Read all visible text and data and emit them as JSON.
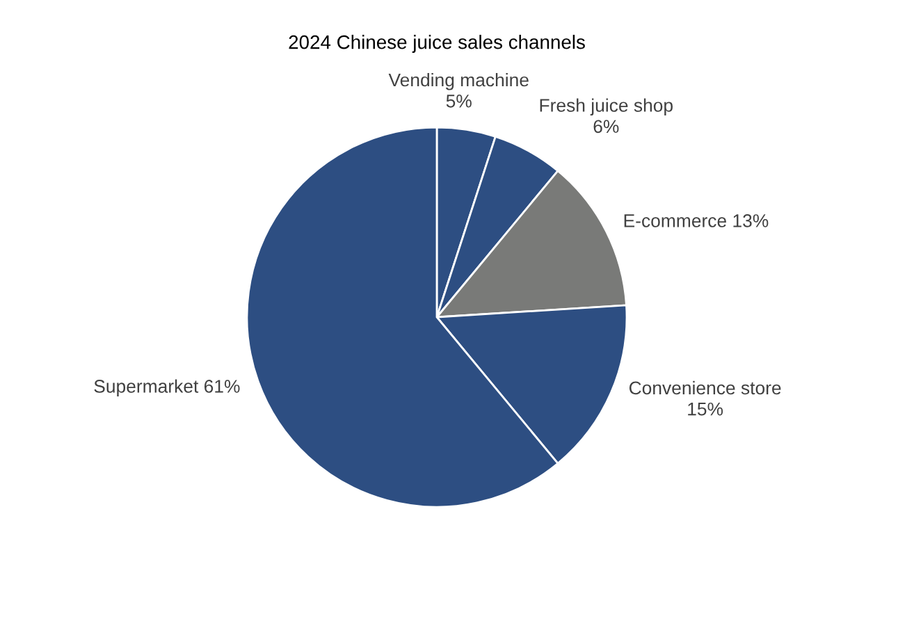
{
  "chart_data": {
    "type": "pie",
    "title": "2024 Chinese juice sales channels",
    "categories": [
      "Vending machine",
      "Fresh juice shop",
      "E-commerce",
      "Convenience store",
      "Supermarket"
    ],
    "values": [
      5,
      6,
      13,
      15,
      61
    ],
    "value_labels": [
      "5%",
      "6%",
      "13%",
      "15%",
      "61%"
    ],
    "colors": [
      "#2d4e82",
      "#2d4e82",
      "#797a78",
      "#2d4e82",
      "#2d4e82"
    ],
    "legend": false
  }
}
